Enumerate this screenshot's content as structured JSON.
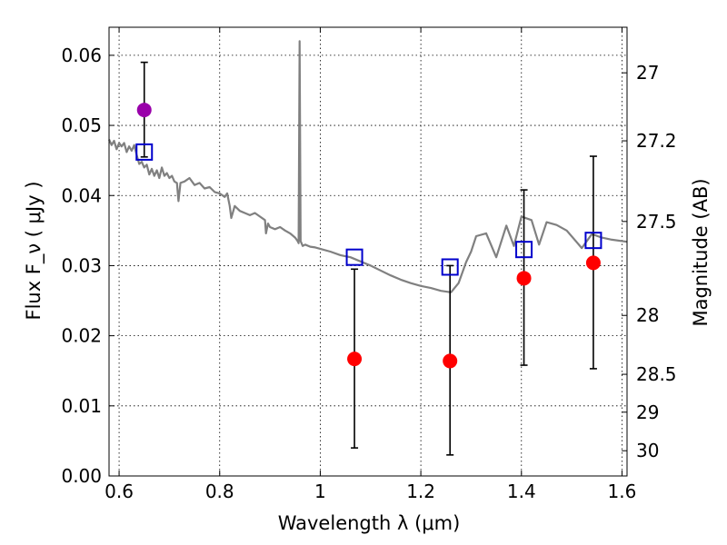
{
  "chart_data": {
    "type": "scatter",
    "xlabel": "Wavelength  λ (μm)",
    "ylabel": "Flux  F_ν  ( μJy )",
    "y2label": "Magnitude (AB)",
    "xlim": [
      0.58,
      1.61
    ],
    "ylim": [
      0.0,
      0.064
    ],
    "x_ticks": [
      0.6,
      0.8,
      1.0,
      1.2,
      1.4,
      1.6
    ],
    "x_tick_labels": [
      "0.6",
      "0.8",
      "1",
      "1.2",
      "1.4",
      "1.6"
    ],
    "y_ticks": [
      0.0,
      0.01,
      0.02,
      0.03,
      0.04,
      0.05,
      0.06
    ],
    "y_tick_labels": [
      "0.00",
      "0.01",
      "0.02",
      "0.03",
      "0.04",
      "0.05",
      "0.06"
    ],
    "y2_ticks": [
      {
        "label": "27",
        "flux": 0.0575
      },
      {
        "label": "27.2",
        "flux": 0.0478
      },
      {
        "label": "27.5",
        "flux": 0.0363
      },
      {
        "label": "28",
        "flux": 0.0229
      },
      {
        "label": "28.5",
        "flux": 0.0145
      },
      {
        "label": "29",
        "flux": 0.0091
      },
      {
        "label": "30",
        "flux": 0.0036
      }
    ],
    "grid": true,
    "colors": {
      "model": "#808080",
      "measured": "#ff0000",
      "measured_first": "#9900aa",
      "model_points": "#0000cc",
      "errorbar": "#000000"
    },
    "series": [
      {
        "kind": "model_spectrum",
        "points": [
          [
            0.58,
            0.048
          ],
          [
            0.585,
            0.0472
          ],
          [
            0.59,
            0.0478
          ],
          [
            0.595,
            0.0466
          ],
          [
            0.6,
            0.0475
          ],
          [
            0.605,
            0.047
          ],
          [
            0.61,
            0.0475
          ],
          [
            0.615,
            0.0462
          ],
          [
            0.62,
            0.047
          ],
          [
            0.625,
            0.0464
          ],
          [
            0.63,
            0.0472
          ],
          [
            0.635,
            0.0458
          ],
          [
            0.64,
            0.0445
          ],
          [
            0.645,
            0.0448
          ],
          [
            0.65,
            0.044
          ],
          [
            0.655,
            0.0444
          ],
          [
            0.66,
            0.043
          ],
          [
            0.665,
            0.0438
          ],
          [
            0.67,
            0.0428
          ],
          [
            0.675,
            0.0436
          ],
          [
            0.68,
            0.0425
          ],
          [
            0.685,
            0.044
          ],
          [
            0.69,
            0.0428
          ],
          [
            0.695,
            0.0432
          ],
          [
            0.7,
            0.0425
          ],
          [
            0.705,
            0.0428
          ],
          [
            0.71,
            0.042
          ],
          [
            0.715,
            0.0418
          ],
          [
            0.718,
            0.0392
          ],
          [
            0.722,
            0.0418
          ],
          [
            0.73,
            0.042
          ],
          [
            0.74,
            0.0425
          ],
          [
            0.75,
            0.0415
          ],
          [
            0.76,
            0.0418
          ],
          [
            0.77,
            0.041
          ],
          [
            0.78,
            0.0412
          ],
          [
            0.79,
            0.0405
          ],
          [
            0.8,
            0.0403
          ],
          [
            0.81,
            0.0398
          ],
          [
            0.815,
            0.0403
          ],
          [
            0.82,
            0.0385
          ],
          [
            0.823,
            0.0368
          ],
          [
            0.83,
            0.0385
          ],
          [
            0.84,
            0.0378
          ],
          [
            0.85,
            0.0375
          ],
          [
            0.86,
            0.0372
          ],
          [
            0.87,
            0.0375
          ],
          [
            0.88,
            0.037
          ],
          [
            0.89,
            0.0365
          ],
          [
            0.892,
            0.0346
          ],
          [
            0.896,
            0.036
          ],
          [
            0.9,
            0.0355
          ],
          [
            0.91,
            0.0352
          ],
          [
            0.92,
            0.0355
          ],
          [
            0.93,
            0.035
          ],
          [
            0.94,
            0.0346
          ],
          [
            0.95,
            0.034
          ],
          [
            0.955,
            0.0335
          ],
          [
            0.957,
            0.0332
          ],
          [
            0.959,
            0.062
          ],
          [
            0.961,
            0.0335
          ],
          [
            0.965,
            0.0328
          ],
          [
            0.97,
            0.033
          ],
          [
            0.98,
            0.0327
          ],
          [
            0.99,
            0.0326
          ],
          [
            1.0,
            0.0324
          ],
          [
            1.02,
            0.032
          ],
          [
            1.04,
            0.0315
          ],
          [
            1.06,
            0.0312
          ],
          [
            1.08,
            0.0306
          ],
          [
            1.1,
            0.03
          ],
          [
            1.12,
            0.0293
          ],
          [
            1.14,
            0.0286
          ],
          [
            1.16,
            0.028
          ],
          [
            1.18,
            0.0275
          ],
          [
            1.2,
            0.0271
          ],
          [
            1.22,
            0.0268
          ],
          [
            1.24,
            0.0264
          ],
          [
            1.26,
            0.0262
          ],
          [
            1.275,
            0.0275
          ],
          [
            1.29,
            0.0305
          ],
          [
            1.3,
            0.032
          ],
          [
            1.31,
            0.0342
          ],
          [
            1.33,
            0.0346
          ],
          [
            1.35,
            0.0312
          ],
          [
            1.37,
            0.0357
          ],
          [
            1.385,
            0.0328
          ],
          [
            1.4,
            0.037
          ],
          [
            1.42,
            0.0365
          ],
          [
            1.435,
            0.033
          ],
          [
            1.45,
            0.0362
          ],
          [
            1.47,
            0.0358
          ],
          [
            1.49,
            0.035
          ],
          [
            1.52,
            0.0325
          ],
          [
            1.54,
            0.0345
          ],
          [
            1.56,
            0.034
          ],
          [
            1.58,
            0.0337
          ],
          [
            1.61,
            0.0334
          ]
        ]
      },
      {
        "kind": "model_points",
        "marker": "open-square",
        "points": [
          [
            0.65,
            0.0462
          ],
          [
            1.068,
            0.0312
          ],
          [
            1.258,
            0.0298
          ],
          [
            1.405,
            0.0323
          ],
          [
            1.543,
            0.0336
          ]
        ]
      },
      {
        "kind": "measured",
        "marker": "filled-circle",
        "points": [
          {
            "x": 0.65,
            "y": 0.0522,
            "ylow": 0.0455,
            "yhigh": 0.059
          },
          {
            "x": 1.068,
            "y": 0.0167,
            "ylow": 0.004,
            "yhigh": 0.0295
          },
          {
            "x": 1.258,
            "y": 0.0164,
            "ylow": 0.003,
            "yhigh": 0.03
          },
          {
            "x": 1.405,
            "y": 0.0282,
            "ylow": 0.0158,
            "yhigh": 0.0408
          },
          {
            "x": 1.543,
            "y": 0.0304,
            "ylow": 0.0153,
            "yhigh": 0.0456
          }
        ]
      }
    ]
  }
}
